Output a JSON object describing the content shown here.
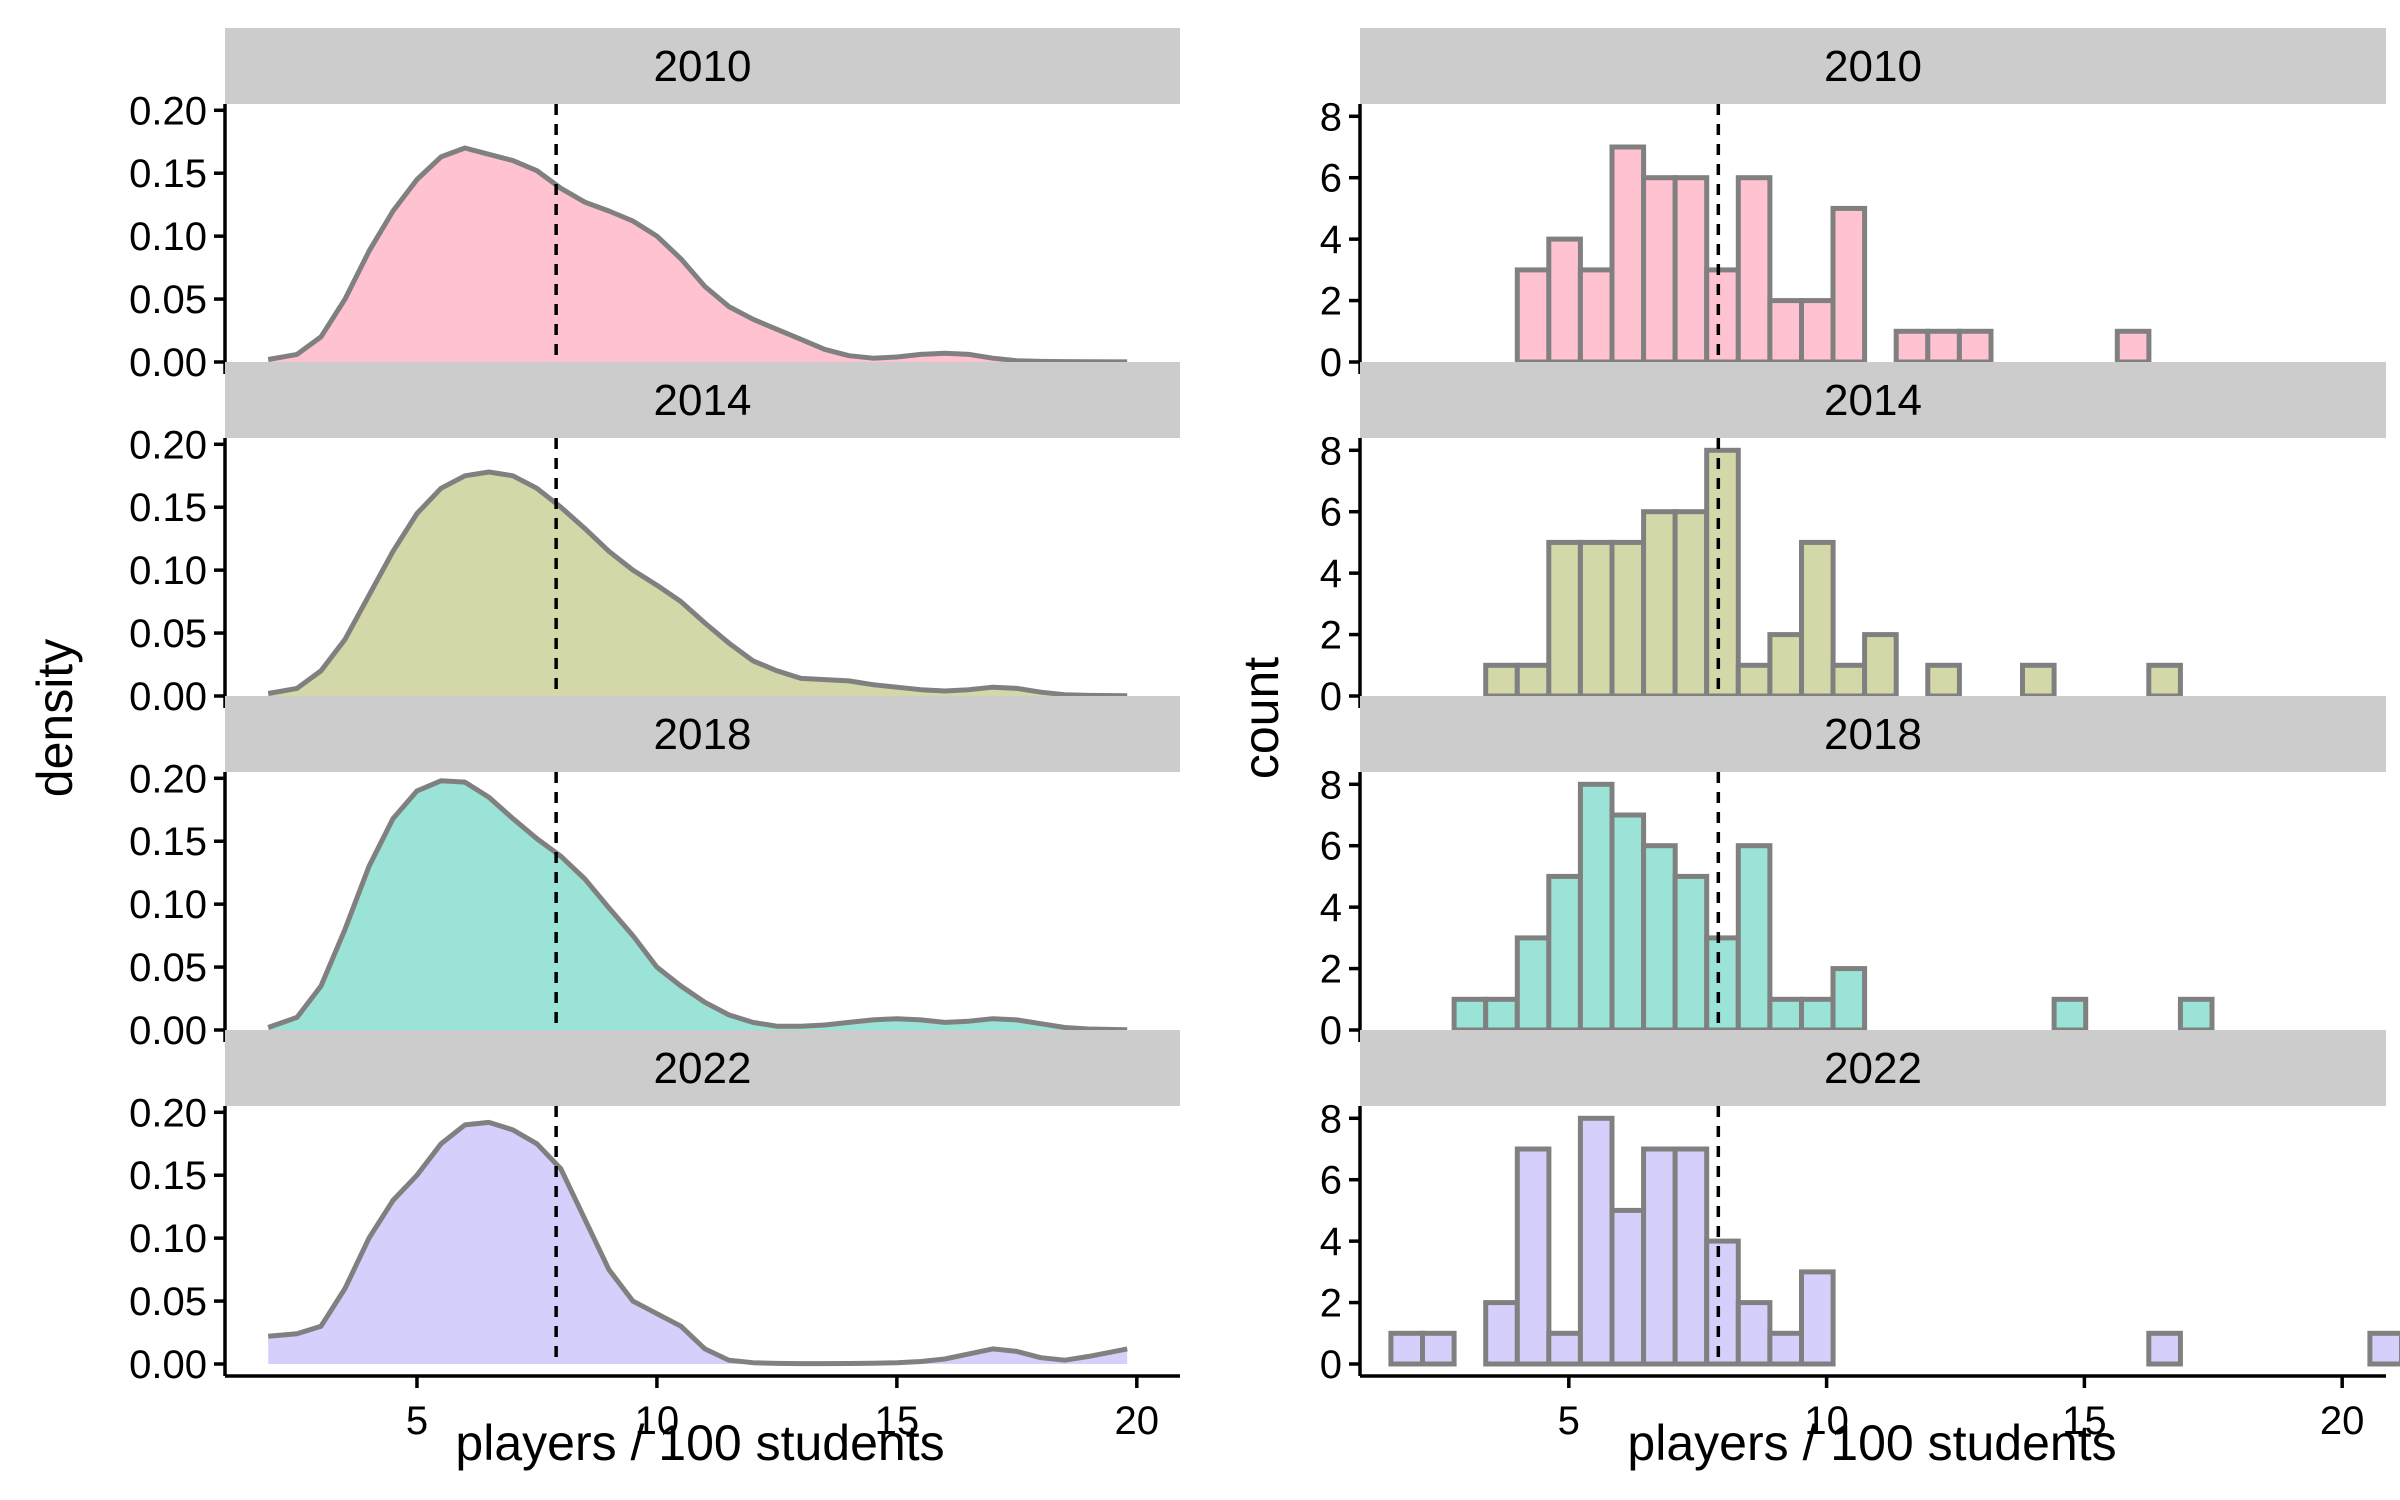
{
  "chart_data": [
    {
      "type": "area",
      "panel": "left",
      "ylabel": "density",
      "xlabel": "players / 100 students",
      "xlim": [
        1.0,
        20.9
      ],
      "ylim": [
        0,
        0.205
      ],
      "x_ticks": [
        5,
        10,
        15,
        20
      ],
      "x_tick_labels": [
        "5",
        "10",
        "15",
        "20"
      ],
      "y_ticks": [
        0,
        0.05,
        0.1,
        0.15,
        0.2
      ],
      "y_tick_labels": [
        "0.00",
        "0.05",
        "0.10",
        "0.15",
        "0.20"
      ],
      "reference_line_x": 7.9,
      "grid": false,
      "facets": [
        {
          "label": "2010",
          "color": "#FFC2D0",
          "x": [
            1.9,
            2.5,
            3.0,
            3.5,
            4.0,
            4.5,
            5.0,
            5.5,
            6.0,
            6.5,
            7.0,
            7.5,
            8.0,
            8.5,
            9.0,
            9.5,
            10.0,
            10.5,
            11.0,
            11.5,
            12.0,
            12.5,
            13.0,
            13.5,
            14.0,
            14.5,
            15.0,
            15.5,
            16.0,
            16.5,
            17.0,
            17.5,
            18.0,
            18.5,
            19.0,
            19.8
          ],
          "y": [
            0.002,
            0.006,
            0.02,
            0.05,
            0.088,
            0.12,
            0.145,
            0.163,
            0.17,
            0.165,
            0.16,
            0.152,
            0.138,
            0.127,
            0.12,
            0.112,
            0.1,
            0.082,
            0.06,
            0.044,
            0.034,
            0.026,
            0.018,
            0.01,
            0.005,
            0.003,
            0.004,
            0.006,
            0.007,
            0.006,
            0.003,
            0.001,
            0.0005,
            0.0003,
            0.0002,
            0.0001
          ]
        },
        {
          "label": "2014",
          "color": "#D4D8A8",
          "x": [
            1.9,
            2.5,
            3.0,
            3.5,
            4.0,
            4.5,
            5.0,
            5.5,
            6.0,
            6.5,
            7.0,
            7.5,
            8.0,
            8.5,
            9.0,
            9.5,
            10.0,
            10.5,
            11.0,
            11.5,
            12.0,
            12.5,
            13.0,
            13.5,
            14.0,
            14.5,
            15.0,
            15.5,
            16.0,
            16.5,
            17.0,
            17.5,
            18.0,
            18.5,
            19.0,
            19.8
          ],
          "y": [
            0.002,
            0.006,
            0.02,
            0.045,
            0.08,
            0.115,
            0.145,
            0.165,
            0.175,
            0.178,
            0.175,
            0.165,
            0.15,
            0.133,
            0.115,
            0.1,
            0.088,
            0.075,
            0.058,
            0.042,
            0.028,
            0.02,
            0.014,
            0.013,
            0.012,
            0.009,
            0.007,
            0.005,
            0.004,
            0.005,
            0.007,
            0.006,
            0.003,
            0.001,
            0.0005,
            0.0002
          ]
        },
        {
          "label": "2018",
          "color": "#9AE3D6",
          "x": [
            1.9,
            2.5,
            3.0,
            3.5,
            4.0,
            4.5,
            5.0,
            5.5,
            6.0,
            6.5,
            7.0,
            7.5,
            8.0,
            8.5,
            9.0,
            9.5,
            10.0,
            10.5,
            11.0,
            11.5,
            12.0,
            12.5,
            13.0,
            13.5,
            14.0,
            14.5,
            15.0,
            15.5,
            16.0,
            16.5,
            17.0,
            17.5,
            18.0,
            18.5,
            19.0,
            19.8
          ],
          "y": [
            0.002,
            0.01,
            0.035,
            0.08,
            0.13,
            0.168,
            0.19,
            0.198,
            0.197,
            0.185,
            0.168,
            0.152,
            0.138,
            0.12,
            0.097,
            0.075,
            0.05,
            0.035,
            0.022,
            0.012,
            0.006,
            0.003,
            0.003,
            0.004,
            0.006,
            0.008,
            0.009,
            0.008,
            0.006,
            0.007,
            0.009,
            0.008,
            0.005,
            0.002,
            0.0008,
            0.0002
          ]
        },
        {
          "label": "2022",
          "color": "#D5D0FB",
          "x": [
            1.9,
            2.5,
            3.0,
            3.5,
            4.0,
            4.5,
            5.0,
            5.5,
            6.0,
            6.5,
            7.0,
            7.5,
            8.0,
            8.5,
            9.0,
            9.5,
            10.0,
            10.5,
            11.0,
            11.5,
            12.0,
            12.5,
            13.0,
            13.5,
            14.0,
            14.5,
            15.0,
            15.5,
            16.0,
            16.5,
            17.0,
            17.5,
            18.0,
            18.5,
            19.0,
            19.8
          ],
          "y": [
            0.022,
            0.024,
            0.03,
            0.06,
            0.1,
            0.13,
            0.15,
            0.175,
            0.19,
            0.192,
            0.186,
            0.175,
            0.155,
            0.115,
            0.075,
            0.05,
            0.04,
            0.03,
            0.012,
            0.003,
            0.001,
            0.0005,
            0.0003,
            0.0003,
            0.0004,
            0.0006,
            0.001,
            0.002,
            0.004,
            0.008,
            0.012,
            0.01,
            0.005,
            0.003,
            0.006,
            0.012
          ]
        }
      ]
    },
    {
      "type": "bar",
      "panel": "right",
      "ylabel": "count",
      "xlabel": "players / 100 students",
      "xlim": [
        0.95,
        20.85
      ],
      "ylim": [
        0,
        8.4
      ],
      "x_ticks": [
        5,
        10,
        15,
        20
      ],
      "x_tick_labels": [
        "5",
        "10",
        "15",
        "20"
      ],
      "y_ticks": [
        0,
        2,
        4,
        6,
        8
      ],
      "y_tick_labels": [
        "0",
        "2",
        "4",
        "6",
        "8"
      ],
      "reference_line_x": 7.9,
      "grid": false,
      "bin_start": 1.55,
      "bin_width": 0.6125,
      "facets": [
        {
          "label": "2010",
          "color": "#FFC2D0",
          "values": [
            0,
            0,
            0,
            0,
            3,
            4,
            3,
            7,
            6,
            6,
            3,
            6,
            2,
            2,
            5,
            0,
            1,
            1,
            1,
            0,
            0,
            0,
            0,
            1,
            0,
            0,
            0,
            0,
            0,
            0,
            0,
            0
          ]
        },
        {
          "label": "2014",
          "color": "#D4D8A8",
          "values": [
            0,
            0,
            0,
            1,
            1,
            5,
            5,
            5,
            6,
            6,
            8,
            1,
            2,
            5,
            1,
            2,
            0,
            1,
            0,
            0,
            1,
            0,
            0,
            0,
            1,
            0,
            0,
            0,
            0,
            0,
            0,
            0
          ]
        },
        {
          "label": "2018",
          "color": "#9AE3D6",
          "values": [
            0,
            0,
            1,
            1,
            3,
            5,
            8,
            7,
            6,
            5,
            3,
            6,
            1,
            1,
            2,
            0,
            0,
            0,
            0,
            0,
            0,
            1,
            0,
            0,
            0,
            1,
            0,
            0,
            0,
            0,
            0,
            0
          ]
        },
        {
          "label": "2022",
          "color": "#D5D0FB",
          "values": [
            1,
            1,
            0,
            2,
            7,
            1,
            8,
            5,
            7,
            7,
            4,
            2,
            1,
            3,
            0,
            0,
            0,
            0,
            0,
            0,
            0,
            0,
            0,
            0,
            1,
            0,
            0,
            0,
            0,
            0,
            0,
            1
          ]
        }
      ]
    }
  ]
}
